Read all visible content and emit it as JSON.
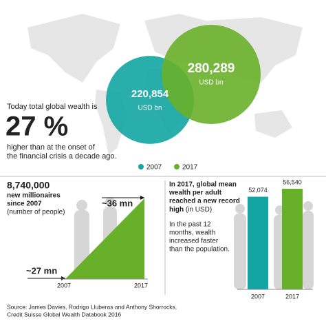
{
  "headline": {
    "intro": "Today total global wealth is",
    "figure": "27 %",
    "outro": [
      "higher than at the onset of",
      "the financial crisis a decade ago."
    ]
  },
  "millionaires": {
    "count": "8,740,000",
    "caption": [
      "new millionaires",
      "since 2007"
    ],
    "note": "(number of people)",
    "start_label": "~27 mn",
    "end_label": "~36 mn",
    "years": [
      "2007",
      "2017"
    ]
  },
  "wealth_per_adult": {
    "title": [
      "In 2017, global mean",
      "wealth per adult",
      "reached a new record"
    ],
    "title_end": "high",
    "title_unit": "(in USD)",
    "note": [
      "In the past 12",
      "months, wealth",
      "increased faster",
      "than the population."
    ]
  },
  "source": [
    "Source: James Davies, Rodrigo Lluberas and Anthony Shorrocks,",
    "Credit Suisse Global Wealth Databook 2016"
  ],
  "chart_data": [
    {
      "type": "bubble",
      "categories": [
        "2007",
        "2017"
      ],
      "values": [
        220854,
        280289
      ],
      "value_labels": [
        "220,854",
        "280,289"
      ],
      "unit": "USD bn",
      "colors": [
        "#12a5a3",
        "#69b02a"
      ]
    },
    {
      "type": "bar",
      "categories": [
        "2007",
        "2017"
      ],
      "values": [
        52074,
        56540
      ],
      "value_labels": [
        "52,074",
        "56,540"
      ],
      "colors": [
        "#12a5a3",
        "#69b02a"
      ]
    }
  ]
}
